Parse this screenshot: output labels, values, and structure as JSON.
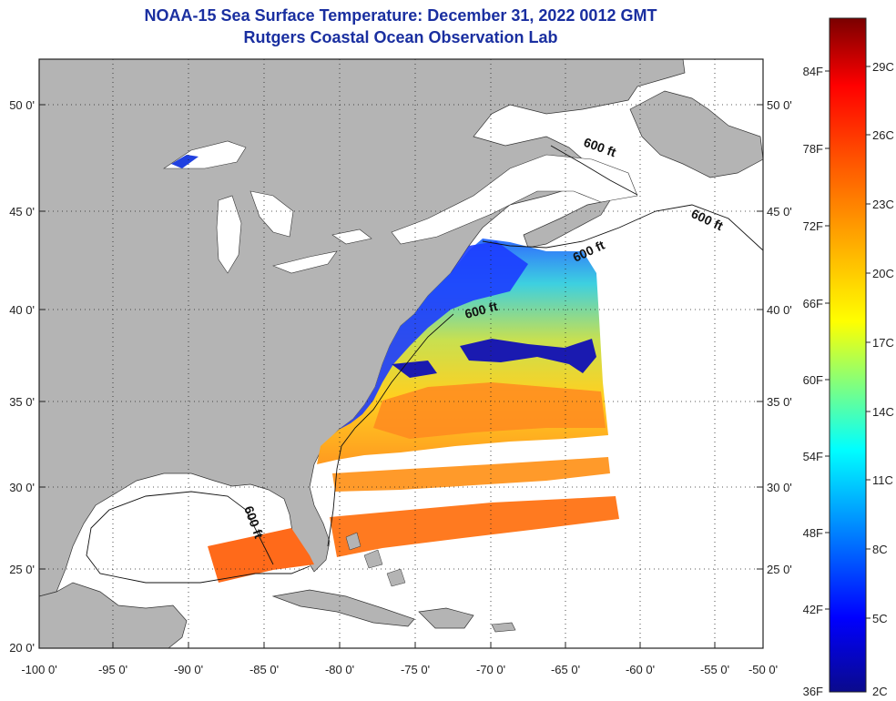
{
  "header": {
    "title_line1": "NOAA-15 Sea Surface Temperature:  December 31, 2022 0012 GMT",
    "title_line2": "Rutgers Coastal Ocean Observation Lab"
  },
  "axes": {
    "lat_labels": [
      "50 0'",
      "45 0'",
      "40 0'",
      "35 0'",
      "30 0'",
      "25 0'",
      "20 0'"
    ],
    "lon_labels": [
      "-100 0'",
      "-95 0'",
      "-90 0'",
      "-85 0'",
      "-80 0'",
      "-75 0'",
      "-70 0'",
      "-65 0'",
      "-60 0'",
      "-55 0'",
      "-50 0'"
    ]
  },
  "isobath_label": "600 ft",
  "colorbar": {
    "fahrenheit_labels": [
      "84F",
      "78F",
      "72F",
      "66F",
      "60F",
      "54F",
      "48F",
      "42F",
      "36F"
    ],
    "celsius_labels": [
      "29C",
      "26C",
      "23C",
      "20C",
      "17C",
      "14C",
      "11C",
      "8C",
      "5C",
      "2C"
    ]
  },
  "colors": {
    "land": "#b4b4b4",
    "ocean_no_data": "#ffffff",
    "title": "#1a2fa0",
    "scale_cold": "#0a0a8c",
    "scale_warm": "#7a0000"
  }
}
